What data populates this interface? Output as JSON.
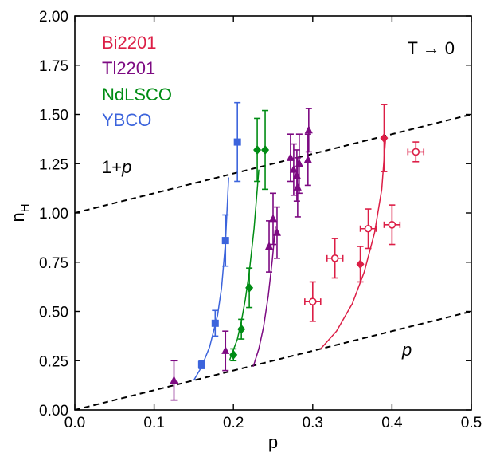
{
  "chart_data": {
    "type": "scatter",
    "xlabel": "p",
    "ylabel_main": "n",
    "ylabel_sub": "H",
    "xlim": [
      0.0,
      0.5
    ],
    "ylim": [
      0.0,
      2.0
    ],
    "x_ticks": [
      0.0,
      0.1,
      0.2,
      0.3,
      0.4,
      0.5
    ],
    "x_tick_labels": [
      "0.0",
      "0.1",
      "0.2",
      "0.3",
      "0.4",
      "0.5"
    ],
    "y_ticks": [
      0.0,
      0.25,
      0.5,
      0.75,
      1.0,
      1.25,
      1.5,
      1.75,
      2.0
    ],
    "y_tick_labels": [
      "0.00",
      "0.25",
      "0.50",
      "0.75",
      "1.00",
      "1.25",
      "1.50",
      "1.75",
      "2.00"
    ],
    "grid": false,
    "annotations": {
      "temperature": "T → 0",
      "upper_line_label_prefix": "1+",
      "upper_line_label_var": "p",
      "lower_line_label": "p"
    },
    "legend": [
      {
        "name": "Bi2201",
        "color": "#dc1e46"
      },
      {
        "name": "Tl2201",
        "color": "#7d0a82"
      },
      {
        "name": "NdLSCO",
        "color": "#008c14"
      },
      {
        "name": "YBCO",
        "color": "#3c64dc"
      }
    ],
    "reference_lines": [
      {
        "label": "1+p",
        "x": [
          0.0,
          0.5
        ],
        "y": [
          1.0,
          1.5
        ],
        "style": "dashed"
      },
      {
        "label": "p",
        "x": [
          0.0,
          0.5
        ],
        "y": [
          0.0,
          0.5
        ],
        "style": "dashed"
      }
    ],
    "series": [
      {
        "name": "YBCO",
        "color": "#3c64dc",
        "marker": "square",
        "points": [
          {
            "x": 0.16,
            "y": 0.23,
            "yerr": 0.02
          },
          {
            "x": 0.177,
            "y": 0.44,
            "yerr": 0.065
          },
          {
            "x": 0.19,
            "y": 0.86,
            "yerr": 0.13
          },
          {
            "x": 0.205,
            "y": 1.36,
            "yerr": 0.2
          }
        ],
        "fit": {
          "x": [
            0.15,
            0.16,
            0.17,
            0.18,
            0.185,
            0.19,
            0.194
          ],
          "y": [
            0.15,
            0.22,
            0.32,
            0.48,
            0.62,
            0.85,
            1.18
          ]
        }
      },
      {
        "name": "NdLSCO",
        "color": "#008c14",
        "marker": "diamond",
        "points": [
          {
            "x": 0.2,
            "y": 0.28,
            "yerr": 0.03
          },
          {
            "x": 0.21,
            "y": 0.41,
            "yerr": 0.05
          },
          {
            "x": 0.22,
            "y": 0.62,
            "yerr": 0.1
          },
          {
            "x": 0.23,
            "y": 1.32,
            "yerr": 0.16
          },
          {
            "x": 0.24,
            "y": 1.32,
            "yerr": 0.2
          }
        ],
        "fit": {
          "x": [
            0.195,
            0.205,
            0.21,
            0.215,
            0.22,
            0.226,
            0.232
          ],
          "y": [
            0.25,
            0.36,
            0.45,
            0.56,
            0.7,
            0.92,
            1.22
          ]
        }
      },
      {
        "name": "Tl2201",
        "color": "#7d0a82",
        "marker": "triangle",
        "points": [
          {
            "x": 0.125,
            "y": 0.15,
            "yerr": 0.1
          },
          {
            "x": 0.19,
            "y": 0.3,
            "yerr": 0.1
          },
          {
            "x": 0.245,
            "y": 0.83,
            "yerr": 0.13
          },
          {
            "x": 0.25,
            "y": 0.97,
            "yerr": 0.13
          },
          {
            "x": 0.255,
            "y": 0.9,
            "yerr": 0.13
          },
          {
            "x": 0.272,
            "y": 1.28,
            "yerr": 0.12
          },
          {
            "x": 0.276,
            "y": 1.22,
            "yerr": 0.13
          },
          {
            "x": 0.28,
            "y": 1.19,
            "yerr": 0.13
          },
          {
            "x": 0.281,
            "y": 1.13,
            "yerr": 0.15
          },
          {
            "x": 0.283,
            "y": 1.25,
            "yerr": 0.15
          },
          {
            "x": 0.294,
            "y": 1.27,
            "yerr": 0.13
          },
          {
            "x": 0.295,
            "y": 1.42,
            "yerr": 0.11
          }
        ],
        "fit": {
          "x": [
            0.225,
            0.232,
            0.238,
            0.244,
            0.249,
            0.253
          ],
          "y": [
            0.22,
            0.31,
            0.42,
            0.58,
            0.76,
            0.93
          ]
        }
      },
      {
        "name": "Bi2201",
        "color": "#dc1e46",
        "marker": "diamond",
        "points": [
          {
            "x": 0.36,
            "y": 0.74,
            "yerr": 0.09
          },
          {
            "x": 0.39,
            "y": 1.38,
            "yerr": 0.17
          }
        ],
        "fit": {
          "x": [
            0.31,
            0.33,
            0.35,
            0.365,
            0.378,
            0.387,
            0.392
          ],
          "y": [
            0.31,
            0.4,
            0.54,
            0.7,
            0.9,
            1.12,
            1.38
          ]
        }
      },
      {
        "name": "Bi2201",
        "color": "#dc1e46",
        "marker": "open-circle",
        "points": [
          {
            "x": 0.3,
            "y": 0.55,
            "yerr": 0.1,
            "xerr": 0.01
          },
          {
            "x": 0.328,
            "y": 0.77,
            "yerr": 0.1,
            "xerr": 0.01
          },
          {
            "x": 0.37,
            "y": 0.92,
            "yerr": 0.1,
            "xerr": 0.01
          },
          {
            "x": 0.4,
            "y": 0.94,
            "yerr": 0.1,
            "xerr": 0.01
          },
          {
            "x": 0.43,
            "y": 1.31,
            "yerr": 0.05,
            "xerr": 0.01
          }
        ]
      }
    ]
  }
}
